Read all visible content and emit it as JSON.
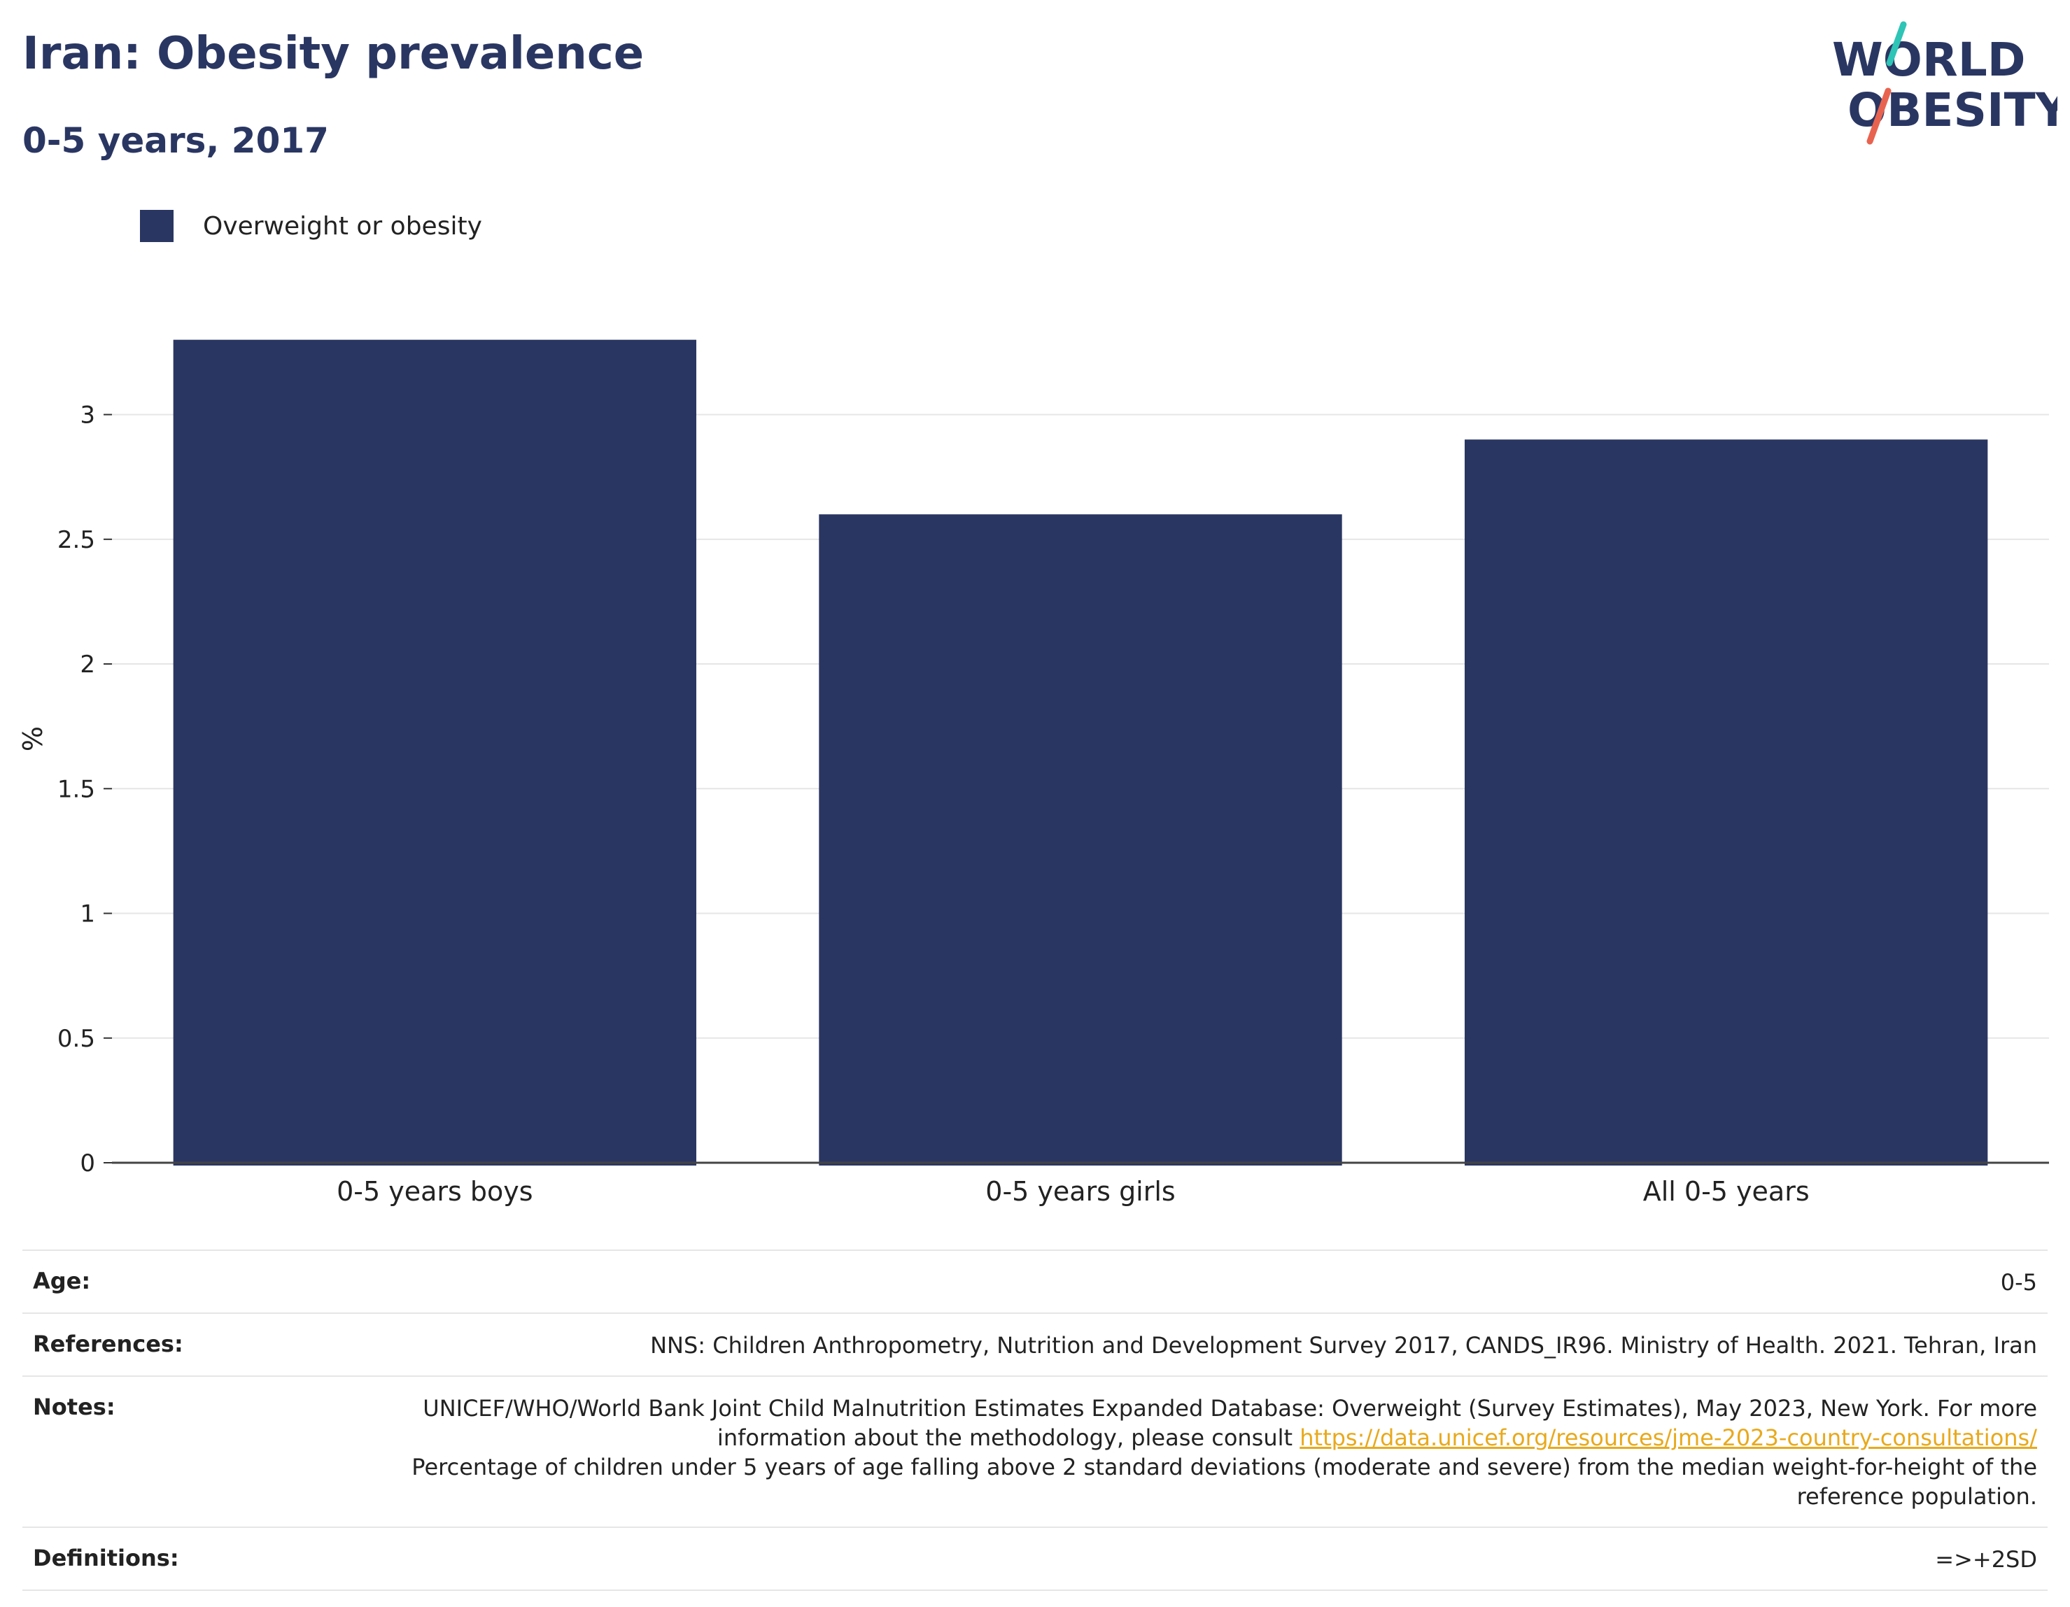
{
  "header": {
    "title": "Iran: Obesity prevalence",
    "subtitle": "0-5 years, 2017"
  },
  "logo": {
    "line1": "WORLD",
    "line2": "OBESITY",
    "colors": {
      "text": "#2a3662",
      "slash_top": "#2ec4b6",
      "slash_bottom": "#e8634f"
    }
  },
  "legend": {
    "label": "Overweight or obesity",
    "color": "#2a3662"
  },
  "chart_data": {
    "type": "bar",
    "categories": [
      "0-5 years boys",
      "0-5 years girls",
      "All 0-5 years"
    ],
    "series": [
      {
        "name": "Overweight or obesity",
        "values": [
          3.3,
          2.6,
          2.9
        ],
        "color": "#2a3662"
      }
    ],
    "ylabel": "%",
    "ylim": [
      0,
      3.4
    ],
    "yticks": [
      "0",
      "0.5",
      "1",
      "1.5",
      "2",
      "2.5",
      "3"
    ],
    "grid": true,
    "legend_position": "top-left"
  },
  "meta": {
    "age_label": "Age:",
    "age_value": "0-5",
    "references_label": "References:",
    "references_value": "NNS: Children Anthropometry, Nutrition and Development Survey 2017, CANDS_IR96. Ministry of Health. 2021. Tehran, Iran",
    "notes_label": "Notes:",
    "notes_text1": "UNICEF/WHO/World Bank Joint Child Malnutrition Estimates Expanded Database: Overweight (Survey Estimates), May 2023, New York. For more information about the methodology, please consult ",
    "notes_link": "https://data.unicef.org/resources/jme-2023-country-consultations/",
    "notes_text2": "Percentage of children under 5 years of age falling above 2 standard deviations (moderate and severe) from the median weight-for-height of the reference population.",
    "definitions_label": "Definitions:",
    "definitions_value": "=>+2SD"
  }
}
